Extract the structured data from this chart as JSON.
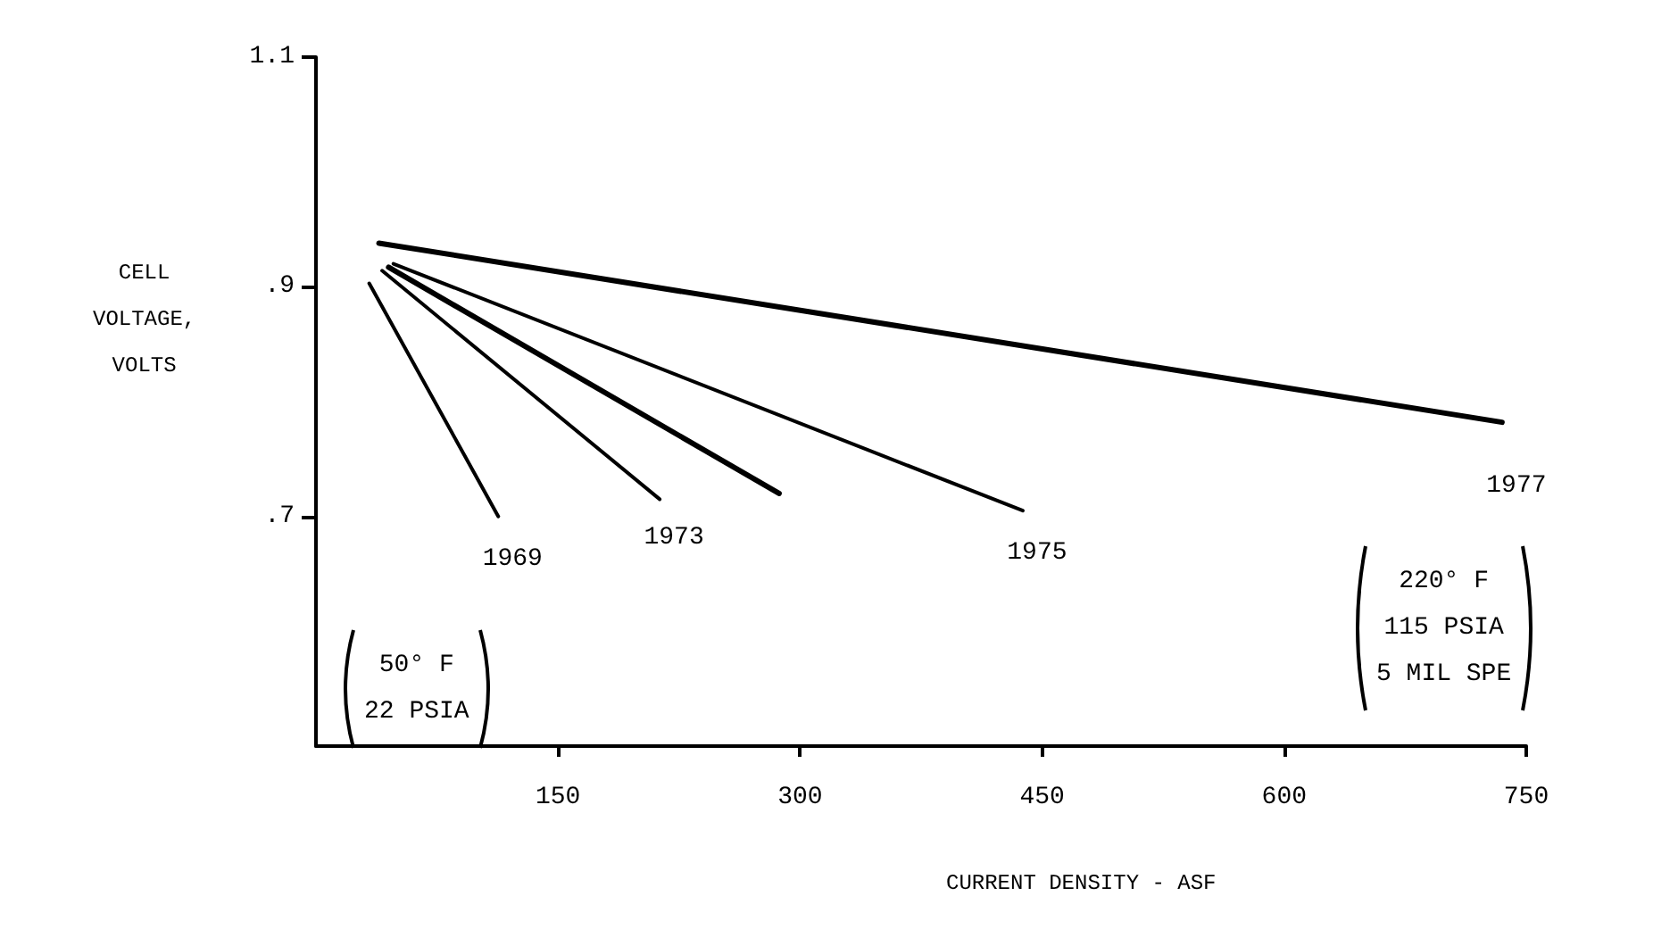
{
  "chart_data": {
    "type": "line",
    "xlabel": "CURRENT DENSITY - ASF",
    "ylabel": "CELL\nVOLTAGE,\nVOLTS",
    "xlim": [
      0,
      750
    ],
    "xticks": [
      150,
      300,
      450,
      600,
      750
    ],
    "ylim": [
      0.5,
      1.1
    ],
    "yticks": [
      {
        "value": 0.7,
        "label": ".7"
      },
      {
        "value": 0.9,
        "label": ".9"
      },
      1.1
    ],
    "grid": false,
    "legend": false,
    "marker": "none",
    "line_style": "solid",
    "series": [
      {
        "name": "1969",
        "color": "#000000",
        "x": [
          33,
          113
        ],
        "values": [
          0.903,
          0.7
        ]
      },
      {
        "name": "1973",
        "color": "#000000",
        "x": [
          41,
          213
        ],
        "values": [
          0.914,
          0.715
        ]
      },
      {
        "color": "#000000",
        "x": [
          45,
          287
        ],
        "values": [
          0.917,
          0.72
        ]
      },
      {
        "name": "1975",
        "color": "#000000",
        "x": [
          48,
          438
        ],
        "values": [
          0.92,
          0.705
        ]
      },
      {
        "name": "1977",
        "color": "#000000",
        "x": [
          39,
          735
        ],
        "values": [
          0.938,
          0.782
        ]
      }
    ],
    "annotations": [
      "50° F\n22 PSIA",
      "220° F\n115 PSIA\n5 MIL SPE"
    ]
  }
}
